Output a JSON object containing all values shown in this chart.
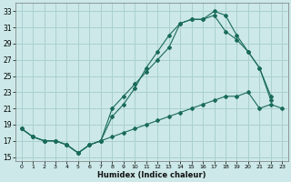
{
  "xlabel": "Humidex (Indice chaleur)",
  "ylabel": "",
  "bg_color": "#cce8e8",
  "grid_color": "#aad0d0",
  "line_color": "#1a6b5a",
  "xlim": [
    -0.5,
    23.5
  ],
  "ylim": [
    14.5,
    34.0
  ],
  "xticks": [
    0,
    1,
    2,
    3,
    4,
    5,
    6,
    7,
    8,
    9,
    10,
    11,
    12,
    13,
    14,
    15,
    16,
    17,
    18,
    19,
    20,
    21,
    22,
    23
  ],
  "yticks": [
    15,
    17,
    19,
    21,
    23,
    25,
    27,
    29,
    31,
    33
  ],
  "line1_x": [
    0,
    1,
    2,
    3,
    4,
    5,
    6,
    7,
    8,
    9,
    10,
    11,
    12,
    13,
    14,
    15,
    16,
    17,
    18,
    19,
    20,
    21,
    22,
    23
  ],
  "line1_y": [
    18.5,
    17.5,
    17.0,
    17.0,
    16.5,
    15.5,
    16.5,
    17.0,
    17.5,
    18.0,
    18.5,
    19.0,
    19.5,
    20.0,
    20.5,
    21.0,
    21.5,
    22.0,
    22.5,
    22.5,
    23.0,
    21.0,
    21.5,
    21.0
  ],
  "line2_x": [
    0,
    1,
    2,
    3,
    4,
    5,
    6,
    7,
    8,
    9,
    10,
    11,
    12,
    13,
    14,
    15,
    16,
    17,
    18,
    19,
    20,
    21,
    22,
    23
  ],
  "line2_y": [
    18.5,
    17.5,
    17.0,
    17.0,
    16.5,
    15.5,
    16.5,
    17.0,
    20.0,
    21.5,
    23.5,
    26.0,
    28.0,
    30.0,
    31.5,
    32.0,
    32.0,
    32.5,
    30.5,
    29.5,
    28.0,
    26.0,
    22.5,
    null
  ],
  "line3_x": [
    0,
    1,
    2,
    3,
    4,
    5,
    6,
    7,
    8,
    9,
    10,
    11,
    12,
    13,
    14,
    15,
    16,
    17,
    18,
    19,
    20,
    21,
    22,
    23
  ],
  "line3_y": [
    18.5,
    17.5,
    17.0,
    17.0,
    16.5,
    15.5,
    16.5,
    17.0,
    21.0,
    22.5,
    24.0,
    25.5,
    27.0,
    28.5,
    31.5,
    32.0,
    32.0,
    33.0,
    32.5,
    30.0,
    28.0,
    26.0,
    22.0,
    null
  ]
}
